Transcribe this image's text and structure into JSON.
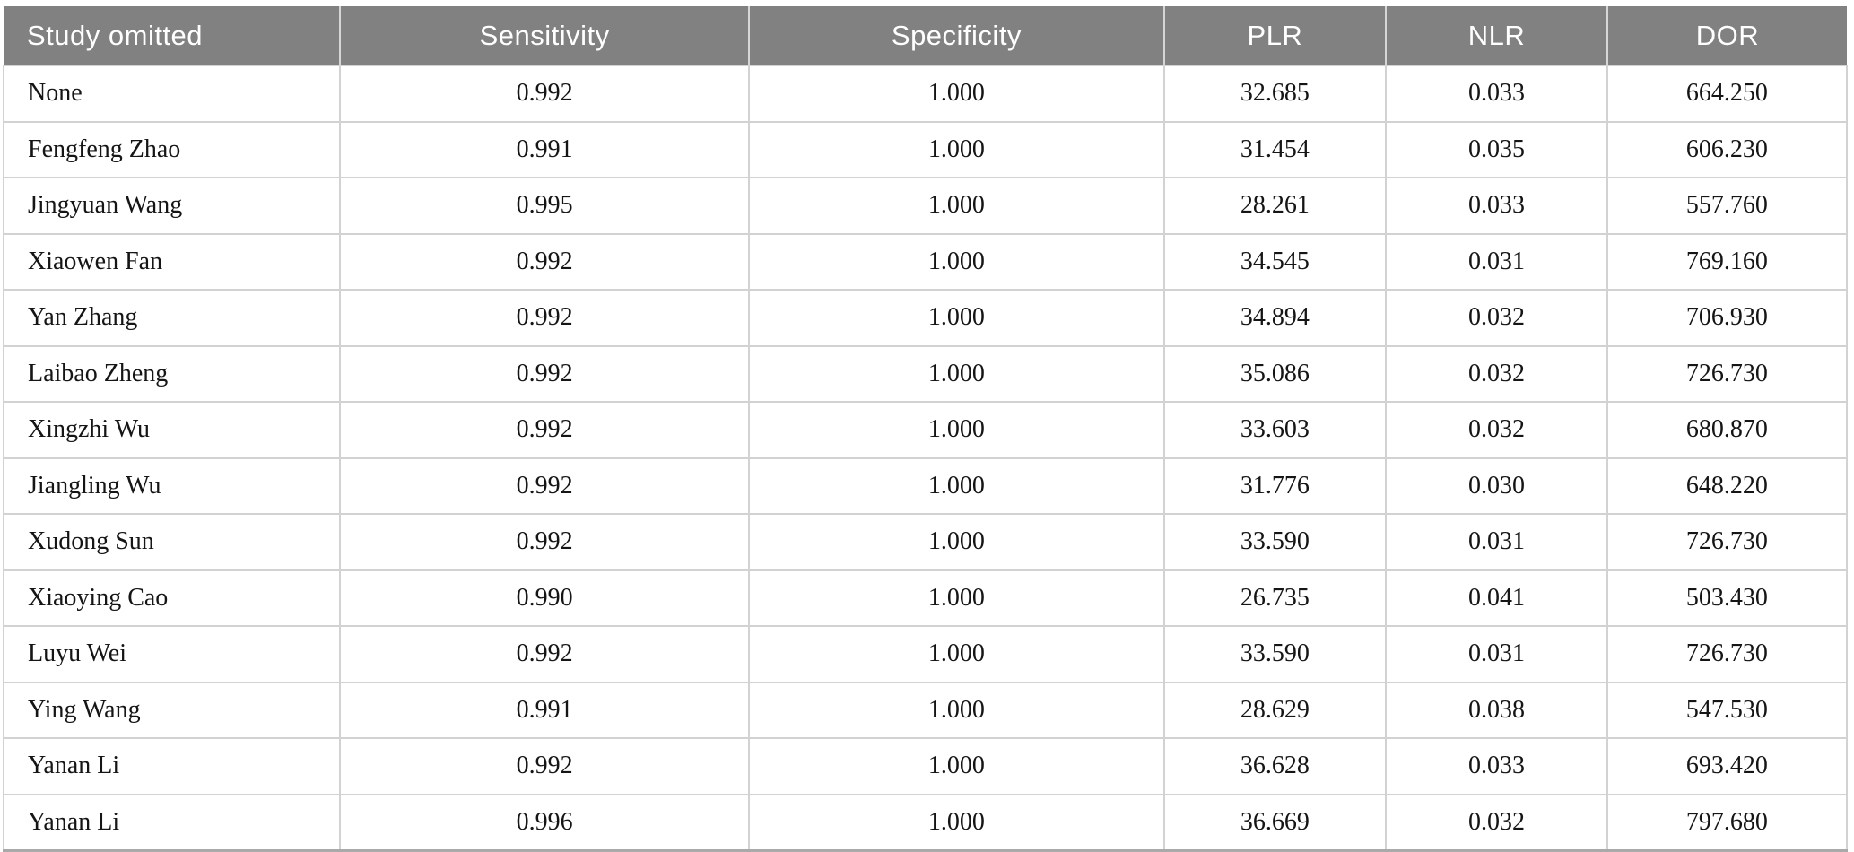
{
  "table": {
    "name": "leave-one-out-sensitivity-analysis",
    "columns": [
      {
        "key": "study",
        "label": "Study omitted",
        "align": "left"
      },
      {
        "key": "sens",
        "label": "Sensitivity",
        "align": "center"
      },
      {
        "key": "spec",
        "label": "Specificity",
        "align": "center"
      },
      {
        "key": "plr",
        "label": "PLR",
        "align": "center"
      },
      {
        "key": "nlr",
        "label": "NLR",
        "align": "center"
      },
      {
        "key": "dor",
        "label": "DOR",
        "align": "center"
      }
    ],
    "rows": [
      {
        "study": "None",
        "sens": "0.992",
        "spec": "1.000",
        "plr": "32.685",
        "nlr": "0.033",
        "dor": "664.250"
      },
      {
        "study": "Fengfeng Zhao",
        "sens": "0.991",
        "spec": "1.000",
        "plr": "31.454",
        "nlr": "0.035",
        "dor": "606.230"
      },
      {
        "study": "Jingyuan Wang",
        "sens": "0.995",
        "spec": "1.000",
        "plr": "28.261",
        "nlr": "0.033",
        "dor": "557.760"
      },
      {
        "study": "Xiaowen Fan",
        "sens": "0.992",
        "spec": "1.000",
        "plr": "34.545",
        "nlr": "0.031",
        "dor": "769.160"
      },
      {
        "study": "Yan Zhang",
        "sens": "0.992",
        "spec": "1.000",
        "plr": "34.894",
        "nlr": "0.032",
        "dor": "706.930"
      },
      {
        "study": "Laibao Zheng",
        "sens": "0.992",
        "spec": "1.000",
        "plr": "35.086",
        "nlr": "0.032",
        "dor": "726.730"
      },
      {
        "study": "Xingzhi Wu",
        "sens": "0.992",
        "spec": "1.000",
        "plr": "33.603",
        "nlr": "0.032",
        "dor": "680.870"
      },
      {
        "study": "Jiangling Wu",
        "sens": "0.992",
        "spec": "1.000",
        "plr": "31.776",
        "nlr": "0.030",
        "dor": "648.220"
      },
      {
        "study": "Xudong Sun",
        "sens": "0.992",
        "spec": "1.000",
        "plr": "33.590",
        "nlr": "0.031",
        "dor": "726.730"
      },
      {
        "study": "Xiaoying Cao",
        "sens": "0.990",
        "spec": "1.000",
        "plr": "26.735",
        "nlr": "0.041",
        "dor": "503.430"
      },
      {
        "study": "Luyu Wei",
        "sens": "0.992",
        "spec": "1.000",
        "plr": "33.590",
        "nlr": "0.031",
        "dor": "726.730"
      },
      {
        "study": "Ying Wang",
        "sens": "0.991",
        "spec": "1.000",
        "plr": "28.629",
        "nlr": "0.038",
        "dor": "547.530"
      },
      {
        "study": "Yanan Li",
        "sens": "0.992",
        "spec": "1.000",
        "plr": "36.628",
        "nlr": "0.033",
        "dor": "693.420"
      },
      {
        "study": "Yanan Li",
        "sens": "0.996",
        "spec": "1.000",
        "plr": "36.669",
        "nlr": "0.032",
        "dor": "797.680"
      }
    ],
    "style": {
      "header_bg": "#818181",
      "header_text": "#ffffff",
      "grid_color": "#d2d2d2",
      "bottom_border": "#a9a9a9"
    }
  }
}
